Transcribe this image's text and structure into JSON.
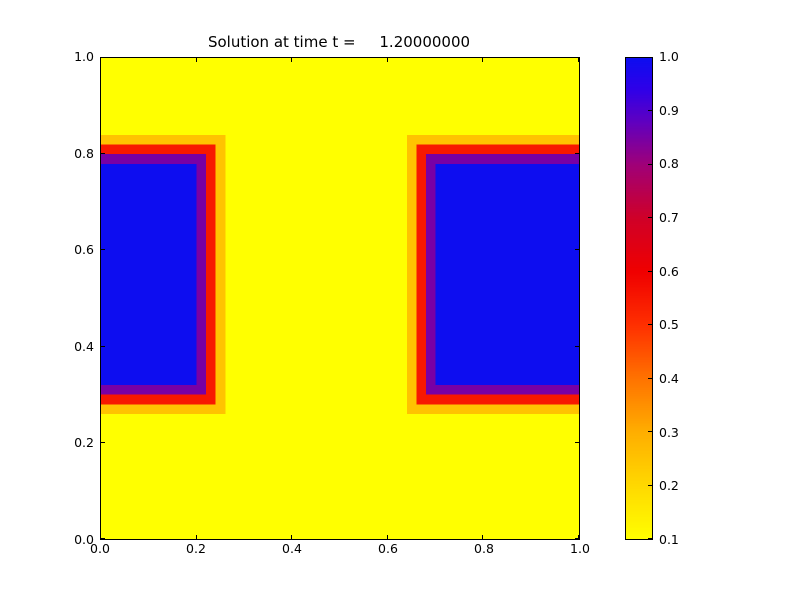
{
  "title": "Solution at time t =     1.20000000",
  "chart_data": {
    "type": "heatmap",
    "title": "Solution at time t =     1.20000000",
    "xlabel": "",
    "ylabel": "",
    "xlim": [
      0.0,
      1.0
    ],
    "ylim": [
      0.0,
      1.0
    ],
    "xticks": [
      0.0,
      0.2,
      0.4,
      0.6,
      0.8,
      1.0
    ],
    "yticks": [
      0.0,
      0.2,
      0.4,
      0.6,
      0.8,
      1.0
    ],
    "vmin": 0.1,
    "vmax": 1.0,
    "grid_resolution": 50,
    "background_value": 0.1,
    "regions": [
      {
        "x0": 0.0,
        "x1": 0.2,
        "y0": 0.32,
        "y1": 0.78,
        "value": 1.0
      },
      {
        "x0": 0.7,
        "x1": 1.0,
        "y0": 0.32,
        "y1": 0.78,
        "value": 1.0
      }
    ],
    "transition_width": 0.06,
    "colormap_stops": [
      [
        0.1,
        "#ffff00"
      ],
      [
        0.2,
        "#ffd900"
      ],
      [
        0.3,
        "#ffae00"
      ],
      [
        0.4,
        "#ff7300"
      ],
      [
        0.5,
        "#ff3000"
      ],
      [
        0.6,
        "#f00000"
      ],
      [
        0.7,
        "#d00028"
      ],
      [
        0.8,
        "#a00078"
      ],
      [
        0.88,
        "#6000c0"
      ],
      [
        0.94,
        "#3000e8"
      ],
      [
        1.0,
        "#0d0df0"
      ]
    ],
    "colorbar": {
      "position": "right",
      "ticks": [
        1.0,
        0.9,
        0.8,
        0.7,
        0.6,
        0.5,
        0.4,
        0.3,
        0.2,
        0.1
      ]
    }
  }
}
